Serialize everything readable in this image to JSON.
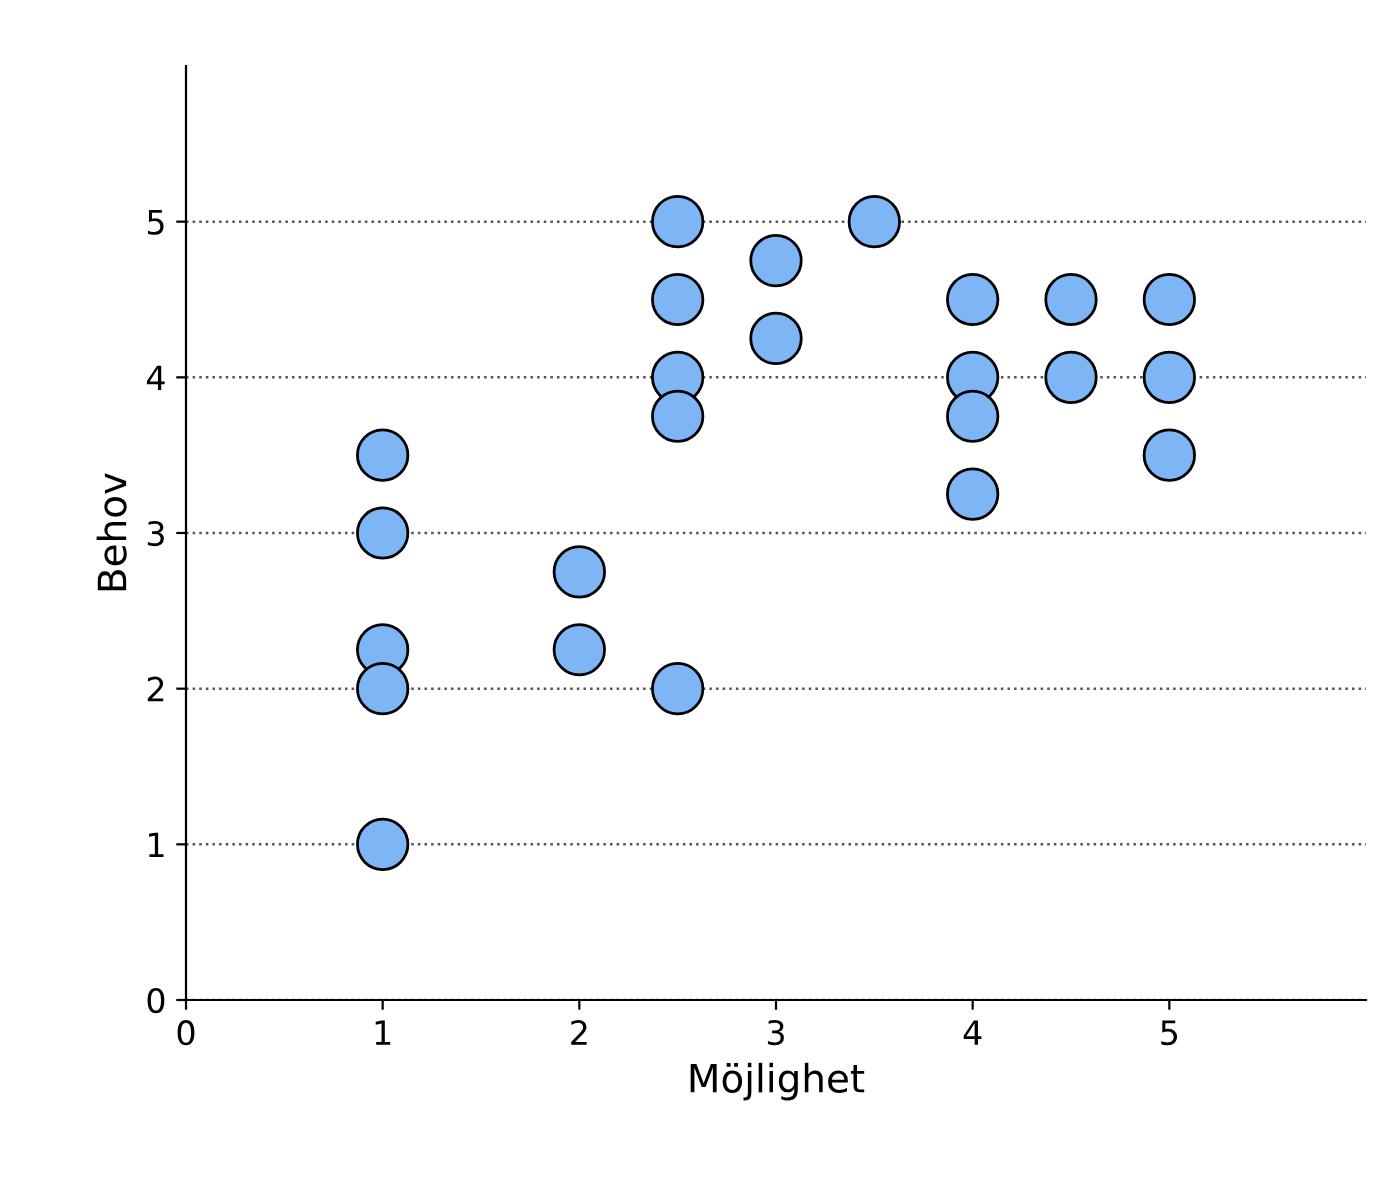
{
  "chart_data": {
    "type": "scatter",
    "xlabel": "Möjlighet",
    "ylabel": "Behov",
    "series": [
      {
        "color": "#7eb6f5",
        "x": [
          1,
          1,
          1,
          1,
          1,
          2,
          2,
          2.5,
          2.5,
          2.5,
          2.5,
          2.5,
          3,
          3,
          3.5,
          4,
          4,
          4,
          4,
          4.5,
          4.5,
          5,
          5,
          5
        ],
        "values": [
          3.5,
          3,
          2.25,
          2,
          1,
          2.75,
          2.25,
          5,
          4.5,
          4,
          3.75,
          2,
          4.75,
          4.25,
          5,
          4.5,
          4,
          3.75,
          3.25,
          4.5,
          4,
          4.5,
          4,
          3.5
        ]
      }
    ],
    "xlim": [
      0,
      6
    ],
    "xticks": [
      0,
      1,
      2,
      3,
      4,
      5
    ],
    "ylim": [
      0,
      6
    ],
    "yticks": [
      0,
      1,
      2,
      3,
      4,
      5
    ],
    "grid": "y",
    "marker": "circle",
    "legend": false
  }
}
